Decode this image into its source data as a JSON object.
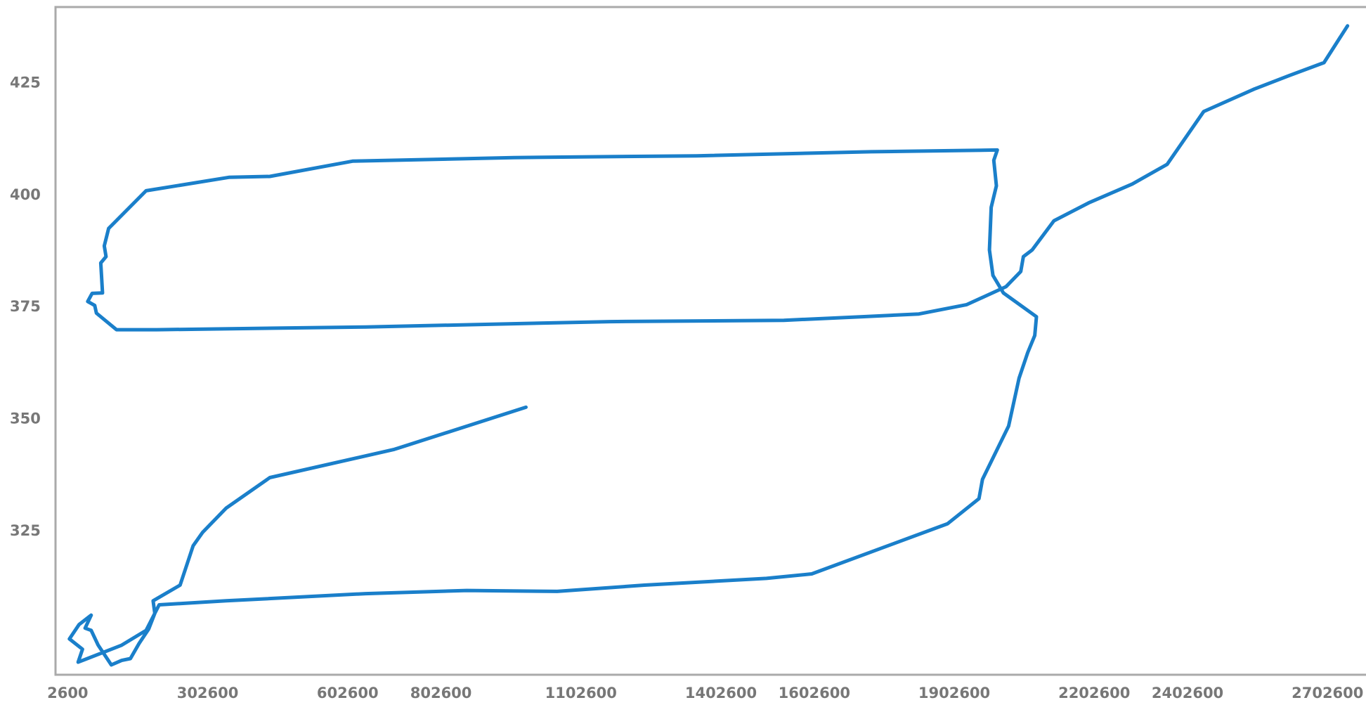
{
  "chart_data": {
    "type": "line",
    "x": [
      984700,
      702800,
      435800,
      342400,
      292000,
      271500,
      243500,
      185600,
      189300,
      176200,
      155700,
      137000,
      118400,
      96000,
      67900,
      53000,
      39900,
      53000,
      26900,
      6300,
      34300,
      25000,
      118400,
      170600,
      198600,
      342400,
      641100,
      857700,
      1051900,
      1238600,
      1500000,
      1597100,
      1888400,
      1955600,
      1963100,
      2019100,
      2041500,
      2060100,
      2075100,
      2078800,
      2007900,
      1985500,
      1978000,
      1981700,
      1992900,
      1987300,
      1994800,
      1724100,
      1350600,
      958600,
      613100,
      435800,
      348000,
      170600,
      90400,
      81000,
      84800,
      73500,
      77300,
      54900,
      45500,
      60500,
      64200,
      107200,
      193000,
      641100,
      1163900,
      1537400,
      1705400,
      1826800,
      1929400,
      2013500,
      2045200,
      2050800,
      2069500,
      2116200,
      2190800,
      2284200,
      2358900,
      2437300,
      2545600,
      2620300,
      2695000,
      2745400
    ],
    "series": [
      {
        "color": "#1a7fca",
        "values": [
          352.7,
          343.3,
          337.0,
          330.2,
          324.8,
          321.8,
          313.0,
          309.5,
          306.7,
          303.2,
          300.0,
          296.6,
          296.2,
          295.2,
          299.6,
          302.9,
          303.4,
          306.3,
          304.2,
          301.0,
          298.7,
          295.8,
          299.6,
          302.9,
          308.6,
          309.5,
          311.1,
          311.8,
          311.6,
          313.0,
          314.5,
          315.5,
          326.7,
          332.3,
          336.6,
          348.5,
          359.2,
          364.9,
          368.7,
          372.9,
          378.2,
          382.1,
          387.8,
          397.3,
          402.1,
          407.8,
          410.1,
          409.7,
          408.8,
          408.4,
          407.6,
          404.2,
          404.0,
          401.0,
          392.6,
          388.7,
          386.3,
          384.9,
          378.2,
          378.1,
          376.3,
          375.4,
          373.7,
          370.0,
          370.0,
          370.6,
          371.8,
          372.1,
          372.9,
          373.5,
          375.6,
          379.6,
          383.0,
          386.3,
          387.8,
          394.3,
          398.3,
          402.5,
          406.9,
          418.7,
          423.7,
          426.7,
          429.6,
          437.8
        ]
      }
    ],
    "xlim": [
      -23500,
      2779000
    ],
    "xticks": [
      2600,
      302600,
      602600,
      802600,
      1102600,
      1402600,
      1602600,
      1902600,
      2202600,
      2402600,
      2702600
    ],
    "ylim": [
      293,
      442
    ],
    "yticks": [
      325,
      350,
      375,
      400,
      425
    ],
    "grid": false
  }
}
